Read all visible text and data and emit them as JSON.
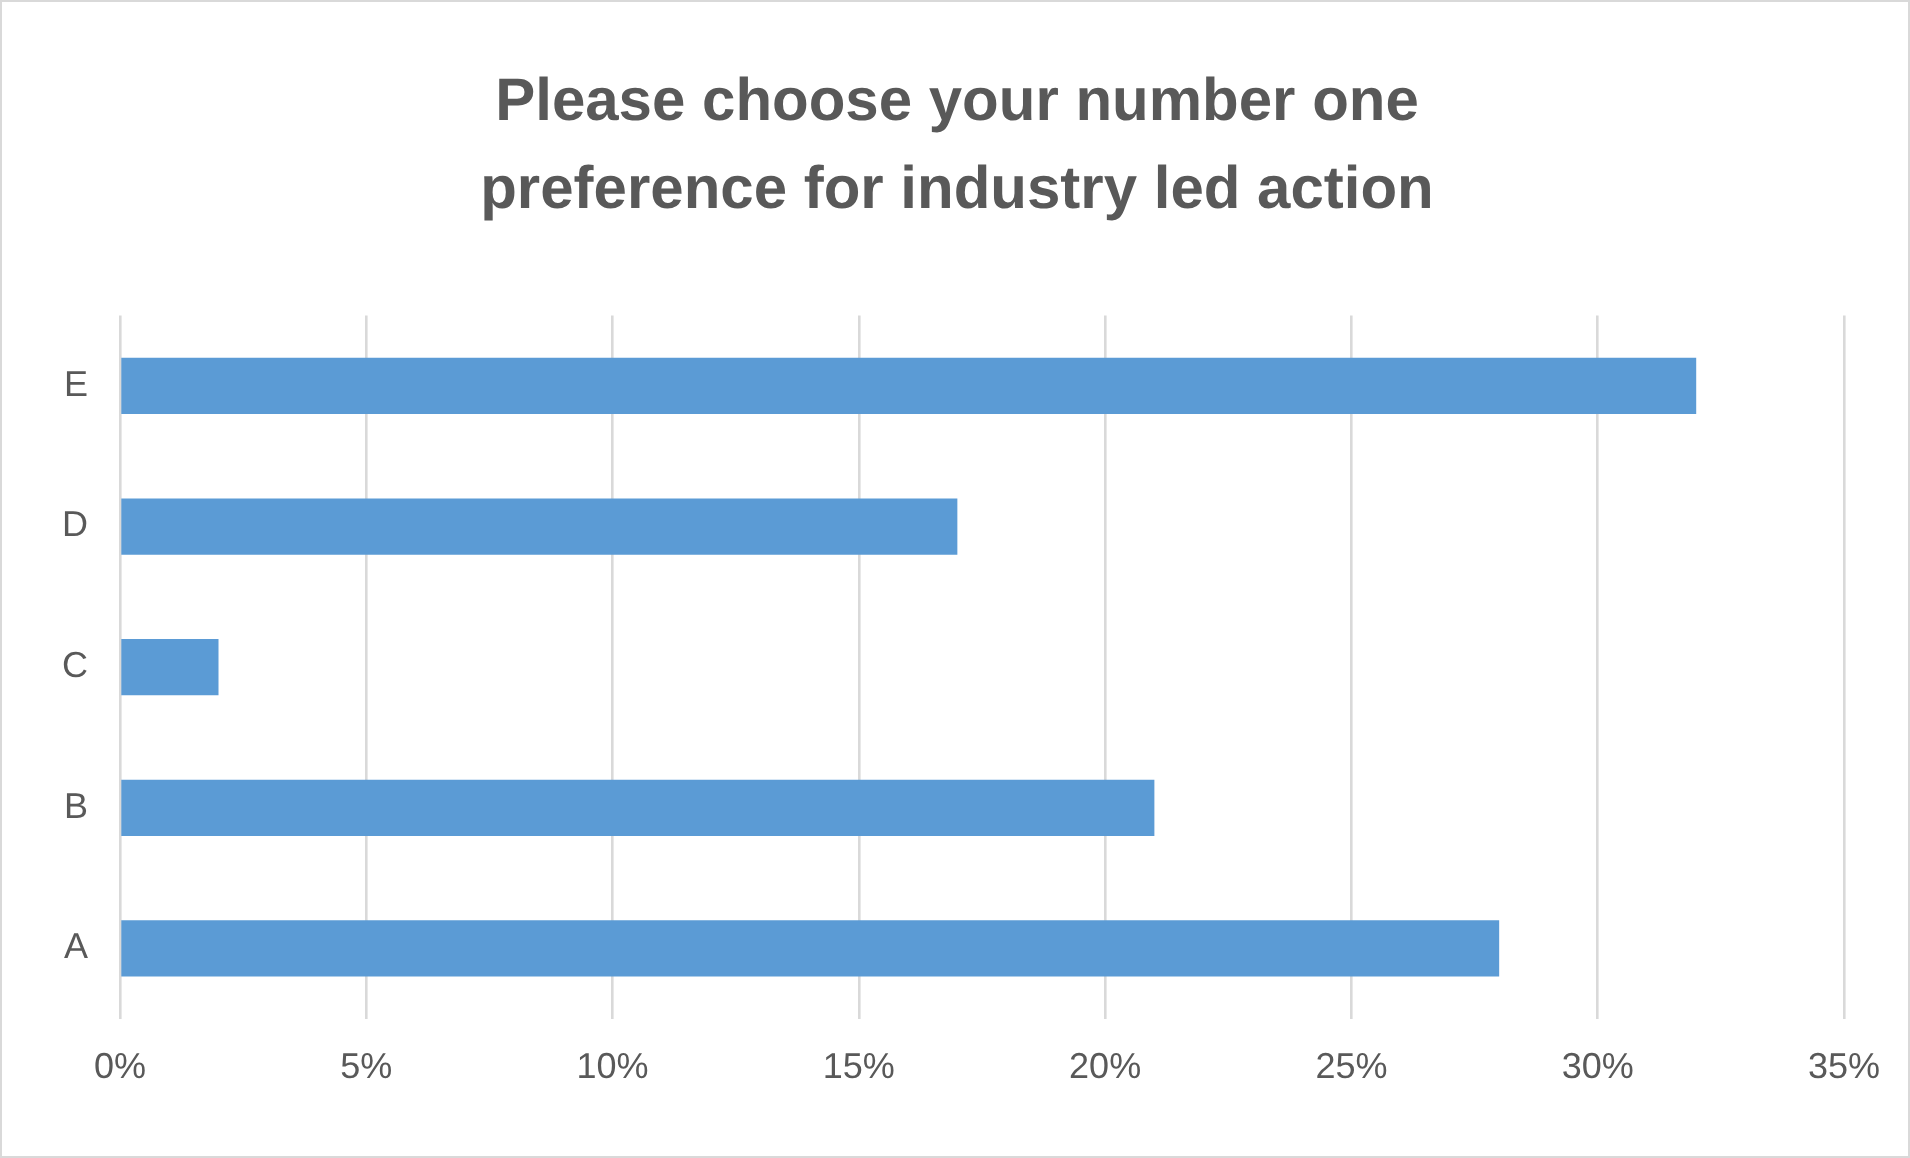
{
  "chart_data": {
    "type": "bar",
    "orientation": "horizontal",
    "title": "Please choose your number one preference for industry led action",
    "categories": [
      "E",
      "D",
      "C",
      "B",
      "A"
    ],
    "values": [
      32,
      17,
      2,
      21,
      28
    ],
    "color": "#5b9bd5",
    "xlim": [
      0,
      35
    ],
    "xticks": [
      {
        "value": 0,
        "label": "0%"
      },
      {
        "value": 5,
        "label": "5%"
      },
      {
        "value": 10,
        "label": "10%"
      },
      {
        "value": 15,
        "label": "15%"
      },
      {
        "value": 20,
        "label": "20%"
      },
      {
        "value": 25,
        "label": "25%"
      },
      {
        "value": 30,
        "label": "30%"
      },
      {
        "value": 35,
        "label": "35%"
      }
    ],
    "grid": "x",
    "legend": false
  }
}
